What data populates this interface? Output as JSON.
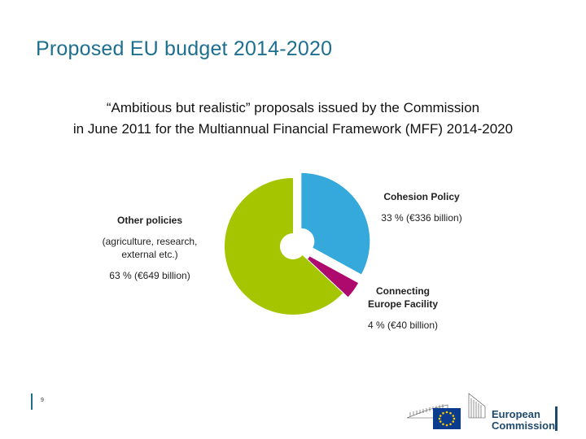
{
  "slide": {
    "title": "Proposed EU budget 2014-2020",
    "subtitle_line1": "“Ambitious but realistic” proposals issued by the Commission",
    "subtitle_line2": "in June 2011 for the Multiannual Financial Framework (MFF) 2014-2020",
    "page_number": "9"
  },
  "labels": {
    "cohesion": {
      "head": "Cohesion Policy",
      "value": "33 % (€336 billion)"
    },
    "cef": {
      "head1": "Connecting",
      "head2": "Europe Facility",
      "value": "4 % (€40 billion)"
    },
    "other": {
      "head": "Other policies",
      "desc1": "(agriculture, research,",
      "desc2": "external etc.)",
      "value": "63 % (€649 billion)"
    }
  },
  "logo": {
    "line1": "European",
    "line2": "Commission"
  },
  "chart_data": {
    "type": "pie",
    "title": "",
    "unit": "%",
    "slices": [
      {
        "name": "Cohesion Policy",
        "percent": 33,
        "amount_billion_eur": 336,
        "color": "#35a9dc"
      },
      {
        "name": "Connecting Europe Facility",
        "percent": 4,
        "amount_billion_eur": 40,
        "color": "#ae0a6e"
      },
      {
        "name": "Other policies",
        "percent": 63,
        "amount_billion_eur": 649,
        "color": "#a5c500"
      }
    ],
    "exploded": true,
    "legend": "none"
  },
  "colors": {
    "title": "#1e6f8f",
    "accent_bar": "#1e6f8f"
  }
}
